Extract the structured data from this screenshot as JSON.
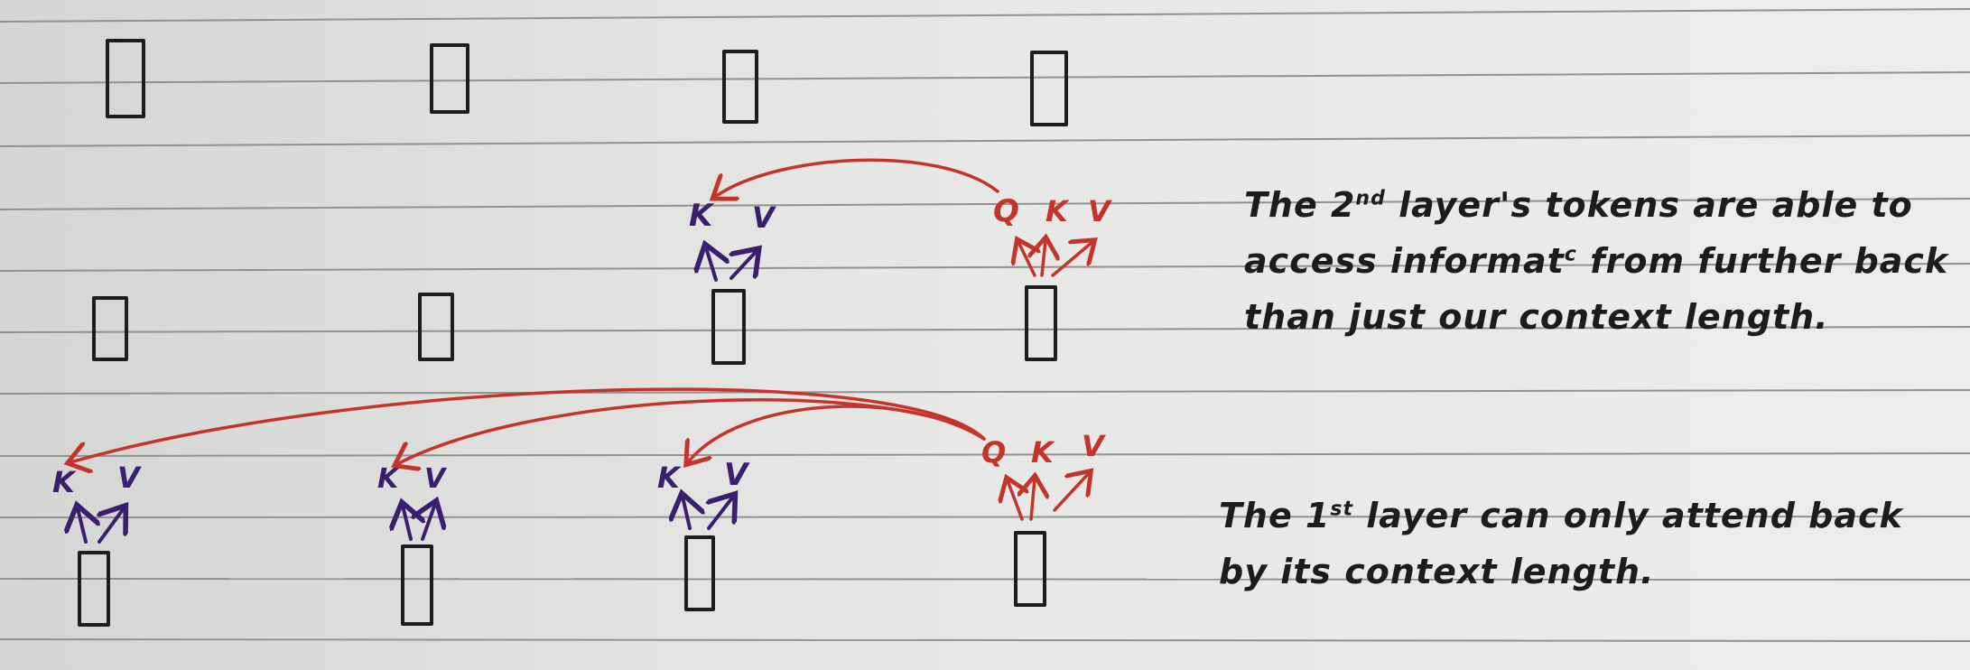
{
  "tokens": {
    "q": "Q",
    "k": "K",
    "v": "V"
  },
  "annotations": {
    "layer2": {
      "before": "The 2",
      "sup": "nd",
      "after": " layer's tokens are able to access informat",
      "sup2": "c",
      "after2": " from further back than just our context length."
    },
    "layer1": {
      "before": "The 1",
      "sup": "st",
      "after": " layer can only attend back by its context length."
    }
  },
  "colors": {
    "query_key_value": "#c5342a",
    "key_value": "#3a1f6e",
    "ink": "#1d1d1f"
  }
}
